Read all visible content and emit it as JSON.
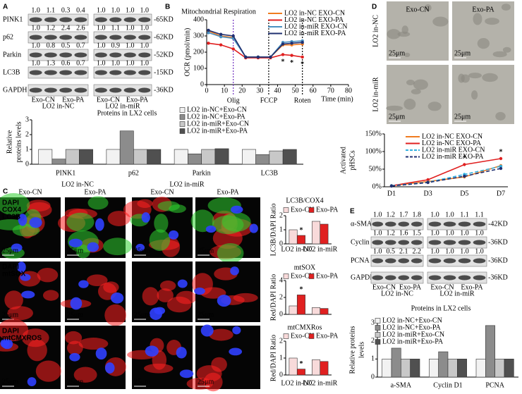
{
  "panel_letters": [
    "A",
    "B",
    "C",
    "D",
    "E"
  ],
  "blot_a": {
    "rows": [
      {
        "name": "PINK1",
        "size": "-65KD",
        "left": [
          "1.0",
          "1.1",
          "0.3",
          "0.4"
        ],
        "right": [
          "1.0",
          "1.0",
          "1.0",
          "1.0"
        ]
      },
      {
        "name": "p62",
        "size": "-62KD",
        "left": [
          "1.0",
          "1.2",
          "2.4",
          "2.6"
        ],
        "right": [
          "1.0",
          "1.1",
          "1.0",
          "1.0"
        ]
      },
      {
        "name": "Parkin",
        "size": "-52KD",
        "left": [
          "1.0",
          "0.8",
          "0.5",
          "0.7"
        ],
        "right": [
          "1.0",
          "0.9",
          "1.0",
          "1.0"
        ]
      },
      {
        "name": "LC3B",
        "size": "-15KD",
        "left": [
          "1.0",
          "1.3",
          "0.6",
          "0.7"
        ],
        "right": [
          "1.0",
          "1.0",
          "1.0",
          "1.0"
        ]
      },
      {
        "name": "GAPDH",
        "size": "-36KD"
      }
    ],
    "lanes": [
      "Exo-CN",
      "Exo-PA"
    ],
    "groups": [
      "LO2 in-NC",
      "LO2  in-miR"
    ]
  },
  "group_labels_c": [
    "LO2 in-NC",
    "LO2 in-miR"
  ],
  "micrographs_c": {
    "columns": [
      "Exo-CN",
      "Exo-PA",
      "Exo-CN",
      "Exo-PA"
    ],
    "rows": [
      {
        "stains": [
          {
            "text": "DAPI",
            "color": "#3040ff"
          },
          {
            "text": "COX4",
            "color": "#30d030"
          },
          {
            "text": "LC3B",
            "color": "#ff2020"
          }
        ]
      },
      {
        "stains": [
          {
            "text": "DAPI",
            "color": "#3040ff"
          },
          {
            "text": "mtSOX",
            "color": "#ff2020"
          }
        ]
      },
      {
        "stains": [
          {
            "text": "DAPI",
            "color": "#3040ff"
          },
          {
            "text": "mtCMXROS",
            "color": "#ff2020"
          }
        ]
      }
    ],
    "scale": "25μm"
  },
  "micrographs_d": {
    "columns": [
      "Exo-CN",
      "Exo-PA"
    ],
    "rows": [
      "LO2 in-NC",
      "LO2 in-miR"
    ],
    "scale": "25μm"
  },
  "blot_e": {
    "rows": [
      {
        "name": "α-SMA",
        "size": "-42KD",
        "left": [
          "1.0",
          "1.2",
          "1.7",
          "1.8"
        ],
        "right": [
          "1.0",
          "1.0",
          "1.1",
          "1.1"
        ]
      },
      {
        "name": "Cyclin D1",
        "size": "-36KD",
        "left": [
          "1.0",
          "1.2",
          "1.6",
          "1.5"
        ],
        "right": [
          "1.0",
          "1.0",
          "1.0",
          "1.0"
        ]
      },
      {
        "name": "PCNA",
        "size": "-36KD",
        "left": [
          "1.0",
          "0.5",
          "2.1",
          "2.2"
        ],
        "right": [
          "1.0",
          "1.0",
          "1.0",
          "1.0"
        ]
      },
      {
        "name": "GAPDH",
        "size": "-36KD"
      }
    ],
    "lanes": [
      "Exo-CN",
      "Exo-PA"
    ],
    "groups": [
      "LO2 in-NC",
      "LO2 in-miR"
    ]
  },
  "chart_data": [
    {
      "type": "bar",
      "title": "Proteins in LX2 cells",
      "ylabel": [
        "Relative",
        "proteins levels"
      ],
      "categories": [
        "PINK1",
        "p62",
        "Parkin",
        "LC3B"
      ],
      "ylim": [
        0,
        3
      ],
      "yticks": [
        0,
        1,
        2,
        3
      ],
      "series": [
        {
          "name": "LO2 in-NC+Exo-CN",
          "color": "#f2f2f2",
          "values": [
            1.0,
            1.0,
            1.0,
            1.0
          ]
        },
        {
          "name": "LO2 in-NC+Exo-PA",
          "color": "#8c8c8c",
          "values": [
            0.35,
            2.25,
            0.7,
            0.65
          ]
        },
        {
          "name": "LO2 in-miR+Exo-CN",
          "color": "#c8c8c8",
          "values": [
            1.0,
            1.0,
            1.0,
            0.9
          ]
        },
        {
          "name": "LO2 in-miR+Exo-PA",
          "color": "#505050",
          "values": [
            1.0,
            1.0,
            1.05,
            1.0
          ]
        }
      ]
    },
    {
      "type": "line",
      "title": "Mitochondrial Respiration",
      "ylabel": "OCR (pmol/min)",
      "xlabel": "Time (min)",
      "x": [
        1,
        8,
        15,
        22,
        29,
        36,
        43,
        48,
        54
      ],
      "xlim": [
        0,
        80
      ],
      "xticks": [
        0,
        10,
        20,
        30,
        40,
        50,
        60,
        70,
        80
      ],
      "ylim": [
        0,
        400
      ],
      "yticks": [
        0,
        100,
        200,
        300,
        400
      ],
      "series": [
        {
          "name": "LO2 in-NC EXO-CN",
          "color": "#f07c20",
          "values": [
            330,
            300,
            290,
            170,
            170,
            170,
            245,
            245,
            250
          ]
        },
        {
          "name": "LO2 in-NC EXO-PA",
          "color": "#e02020",
          "values": [
            255,
            245,
            220,
            165,
            165,
            165,
            185,
            180,
            170
          ]
        },
        {
          "name": "LO2 in-miR EXO-CN",
          "color": "#4a90c0",
          "values": [
            320,
            295,
            285,
            170,
            170,
            170,
            260,
            265,
            270
          ]
        },
        {
          "name": "LO2 in-miR EXO-PA",
          "color": "#1f2f70",
          "values": [
            335,
            310,
            300,
            170,
            170,
            170,
            250,
            255,
            260
          ]
        }
      ],
      "events": [
        {
          "label": "Olig",
          "x": 15,
          "color": "#7030c0"
        },
        {
          "label": "FCCP",
          "x": 35,
          "color": "#000000"
        },
        {
          "label": "Roten",
          "x": 54,
          "color": "#000000"
        }
      ],
      "annotations": [
        {
          "text": "*",
          "series": 1,
          "index": 6
        },
        {
          "text": "*",
          "series": 1,
          "index": 7
        },
        {
          "text": "*",
          "series": 1,
          "index": 8
        }
      ]
    },
    {
      "type": "bar",
      "title": "LC3B/COX4",
      "ylabel": "LC3B/DAPI Ratio",
      "categories": [
        "LO2 in-NC",
        "LO2 in-miR"
      ],
      "ylim": [
        0,
        2
      ],
      "yticks": [
        0,
        1,
        2
      ],
      "series": [
        {
          "name": "Exo-CN",
          "color": "#f8dada",
          "values": [
            1.0,
            1.6
          ]
        },
        {
          "name": "Exo-PA",
          "color": "#e02020",
          "values": [
            0.6,
            1.4
          ]
        }
      ],
      "annotations": [
        {
          "text": "*",
          "series": 1,
          "index": 0
        }
      ]
    },
    {
      "type": "bar",
      "title": "mtSOX",
      "ylabel": "Red/DAPI Ratio",
      "ylim": [
        0,
        4
      ],
      "yticks": [
        0,
        2,
        4
      ],
      "series": [
        {
          "name": "Exo-CN",
          "color": "#f8dada",
          "values": [
            1.0,
            0.8
          ]
        },
        {
          "name": "Exo-PA",
          "color": "#e02020",
          "values": [
            2.3,
            0.7
          ]
        }
      ],
      "annotations": [
        {
          "text": "*",
          "series": 1,
          "index": 0
        }
      ]
    },
    {
      "type": "bar",
      "title": "mtCMXRos",
      "ylabel": "Red/DAPI Ratio",
      "categories": [
        "LO2 in-NC",
        "LO2 in-miR"
      ],
      "ylim": [
        0,
        2
      ],
      "yticks": [
        0,
        1,
        2
      ],
      "series": [
        {
          "name": "Exo-CN",
          "color": "#f8dada",
          "values": [
            1.0,
            0.9
          ]
        },
        {
          "name": "Exo-PA",
          "color": "#e02020",
          "values": [
            0.35,
            0.8
          ]
        }
      ],
      "annotations": [
        {
          "text": "*",
          "series": 1,
          "index": 0
        }
      ]
    },
    {
      "type": "line",
      "ylabel": [
        "Activated",
        "pHSCs"
      ],
      "categories": [
        "D1",
        "D3",
        "D5",
        "D7"
      ],
      "ylim": [
        0,
        150
      ],
      "yticks": [
        {
          "value": 0,
          "label": "0%"
        },
        {
          "value": 50,
          "label": "50%"
        },
        {
          "value": 100,
          "label": "100%"
        },
        {
          "value": 150,
          "label": "150%"
        }
      ],
      "series": [
        {
          "name": "LO2 in-NC EXO-CN",
          "color": "#f07c20",
          "dash": false,
          "values": [
            3,
            15,
            28,
            60
          ]
        },
        {
          "name": "LO2 in-NC EXO-PA",
          "color": "#e02020",
          "dash": false,
          "values": [
            3,
            20,
            63,
            80
          ]
        },
        {
          "name": "LO2 in-miR EXO-CN",
          "color": "#30b0e0",
          "dash": true,
          "values": [
            3,
            13,
            35,
            58
          ]
        },
        {
          "name": "LO2 in-miR EXO-PA",
          "color": "#1f2f70",
          "dash": true,
          "values": [
            2,
            12,
            30,
            52
          ]
        }
      ],
      "annotations": [
        {
          "text": "*",
          "series": 1,
          "index": 2
        },
        {
          "text": "*",
          "series": 1,
          "index": 3
        }
      ]
    },
    {
      "type": "bar",
      "title": "Proteins in LX2 cells",
      "ylabel": [
        "Relative proteins",
        "levels"
      ],
      "categories": [
        "a-SMA",
        "Cyclin D1",
        "PCNA"
      ],
      "ylim": [
        0,
        3
      ],
      "yticks": [
        0,
        1,
        2,
        3
      ],
      "series": [
        {
          "name": "LO2 in-NC+Exo-CN",
          "color": "#f2f2f2",
          "values": [
            1.0,
            1.0,
            1.0
          ]
        },
        {
          "name": "LO2 in-NC+Exo-PA",
          "color": "#8c8c8c",
          "values": [
            1.6,
            1.4,
            2.85
          ]
        },
        {
          "name": "LO2 in-miR+Exo-CN",
          "color": "#c8c8c8",
          "values": [
            1.0,
            1.0,
            1.0
          ]
        },
        {
          "name": "LO2 in-miR+Exo-PA",
          "color": "#505050",
          "values": [
            1.0,
            1.0,
            1.0
          ]
        }
      ]
    }
  ]
}
